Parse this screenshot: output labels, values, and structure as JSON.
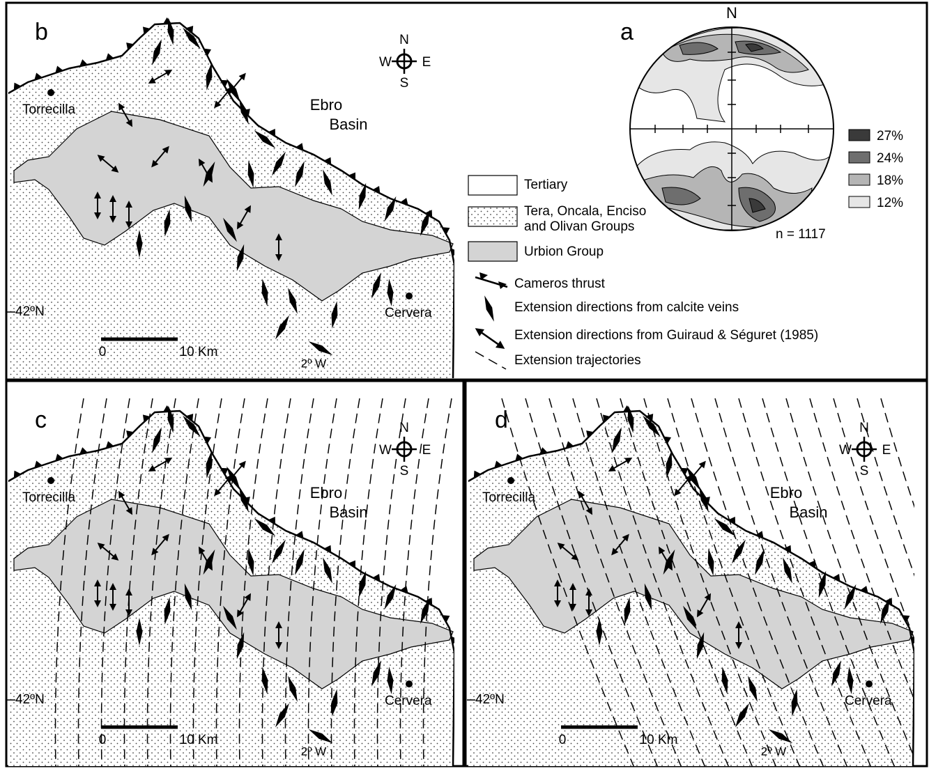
{
  "panel_b": {
    "label": "b",
    "compass": {
      "n": "N",
      "s": "S",
      "w": "W",
      "e": "E"
    },
    "town_1": "Torrecilla",
    "basin": [
      "Ebro",
      "Basin"
    ],
    "town_2": "Cervera",
    "latitude": "42ºN",
    "scale": {
      "start": "0",
      "end": "10 Km"
    },
    "longitude": "2º W"
  },
  "panel_c": {
    "label": "c",
    "compass": {
      "n": "N",
      "s": "S",
      "w": "W",
      "e": "E"
    },
    "town_1": "Torrecilla",
    "basin": [
      "Ebro",
      "Basin"
    ],
    "town_2": "Cervera",
    "latitude": "42ºN",
    "scale": {
      "start": "0",
      "end": "10 Km"
    },
    "longitude": "2º W"
  },
  "panel_d": {
    "label": "d",
    "compass": {
      "n": "N",
      "s": "S",
      "w": "W",
      "e": "E"
    },
    "town_1": "Torrecilla",
    "basin": [
      "Ebro",
      "Basin"
    ],
    "town_2": "Cervera",
    "latitude": "42ºN",
    "scale": {
      "start": "0",
      "end": "10 Km"
    },
    "longitude": "2º W"
  },
  "panel_a": {
    "label": "a",
    "north": "N",
    "contour_legend": [
      "27%",
      "24%",
      "18%",
      "12%"
    ],
    "n": "n = 1117"
  },
  "legend": {
    "tertiary": "Tertiary",
    "groups": [
      "Tera, Oncala, Enciso",
      "and Olivan Groups"
    ],
    "urbion": "Urbion Group",
    "thrust": "Cameros thrust",
    "veins": "Extension directions from calcite veins",
    "guiraud": "Extension directions from Guiraud & Séguret (1985)",
    "trajectories": "Extension trajectories"
  }
}
